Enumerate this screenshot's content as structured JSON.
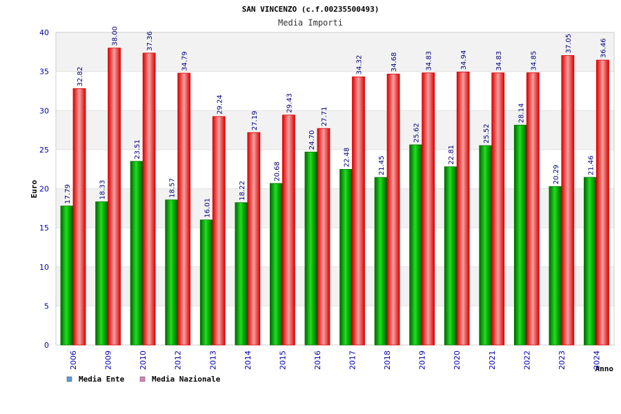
{
  "chart_data": {
    "type": "bar",
    "title": "SAN VINCENZO (c.f.00235500493)",
    "subtitle": "Media Importi",
    "xlabel": "Anno",
    "ylabel": "Euro",
    "ylim": [
      0,
      40
    ],
    "yticks": [
      0,
      5,
      10,
      15,
      20,
      25,
      30,
      35,
      40
    ],
    "grid": true,
    "legend_position": "bottom-left",
    "categories": [
      "2006",
      "2009",
      "2010",
      "2012",
      "2013",
      "2014",
      "2015",
      "2016",
      "2017",
      "2018",
      "2019",
      "2020",
      "2021",
      "2022",
      "2023",
      "2024"
    ],
    "series": [
      {
        "name": "Media Ente",
        "color": "#00aa00",
        "legend_color": "#5b9bd5",
        "values": [
          17.79,
          18.33,
          23.51,
          18.57,
          16.01,
          18.22,
          20.68,
          24.7,
          22.48,
          21.45,
          25.62,
          22.81,
          25.52,
          28.14,
          20.29,
          21.46
        ],
        "labels": [
          "17.79",
          "18.33",
          "23.51",
          "18.57",
          "16.01",
          "18.22",
          "20.68",
          "24.70",
          "22.48",
          "21.45",
          "25.62",
          "22.81",
          "25.52",
          "28.14",
          "20.29",
          "21.46"
        ]
      },
      {
        "name": "Media Nazionale",
        "color": "#e00000",
        "legend_color": "#d783b0",
        "values": [
          32.82,
          38.0,
          37.36,
          34.79,
          29.24,
          27.19,
          29.43,
          27.71,
          34.32,
          34.68,
          34.83,
          34.94,
          34.83,
          34.85,
          37.05,
          36.46
        ],
        "labels": [
          "32.82",
          "38.00",
          "37.36",
          "34.79",
          "29.24",
          "27.19",
          "29.43",
          "27.71",
          "34.32",
          "34.68",
          "34.83",
          "34.94",
          "34.83",
          "34.85",
          "37.05",
          "36.46"
        ]
      }
    ]
  }
}
